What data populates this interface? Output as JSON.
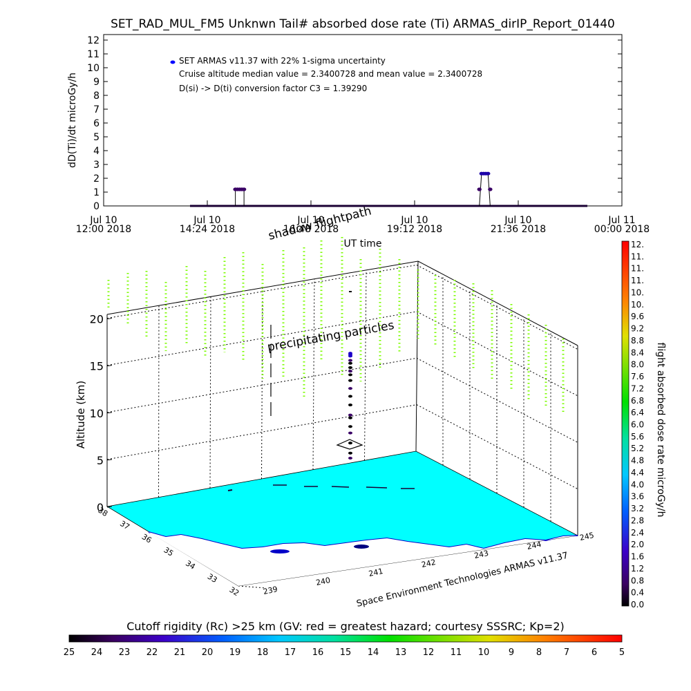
{
  "title": "SET_RAD_MUL_FM5 Unknwn Tail#  absorbed dose rate (Ti) ARMAS_dirIP_Report_01440",
  "top_panel": {
    "ylabel": "dD(Ti)/dt microGy/h",
    "xlabel": "UT time",
    "yticks": [
      "0",
      "1",
      "2",
      "3",
      "4",
      "5",
      "6",
      "7",
      "8",
      "9",
      "10",
      "11",
      "12"
    ],
    "xticks": [
      {
        "l1": "Jul 10",
        "l2": "12:00 2018"
      },
      {
        "l1": "Jul 10",
        "l2": "14:24 2018"
      },
      {
        "l1": "Jul 10",
        "l2": "16:48 2018"
      },
      {
        "l1": "Jul 10",
        "l2": "19:12 2018"
      },
      {
        "l1": "Jul 10",
        "l2": "21:36 2018"
      },
      {
        "l1": "Jul 11",
        "l2": "00:00 2018"
      }
    ],
    "legend": {
      "line1": "SET ARMAS v11.37 with 22% 1-sigma uncertainty",
      "line2": "Cruise altitude median value = 2.3400728 and mean value = 2.3400728",
      "line3": "D(si) -> D(ti) conversion factor C3 = 1.39290",
      "marker_color": "#0000ff"
    }
  },
  "chart_data": [
    {
      "type": "scatter",
      "title": "SET_RAD_MUL_FM5 Unknwn Tail#  absorbed dose rate (Ti) ARMAS_dirIP_Report_01440",
      "xlabel": "UT time",
      "ylabel": "dD(Ti)/dt microGy/h",
      "ylim": [
        0,
        12
      ],
      "xlim_hours": [
        12.0,
        24.0
      ],
      "series": [
        {
          "name": "SET ARMAS v11.37 with 22% 1-sigma uncertainty",
          "baseline": {
            "x_start_hours": 14.0,
            "x_end_hours": 24.0,
            "value": 0.0
          },
          "points_hours": [
            [
              15.05,
              1.2
            ],
            [
              15.1,
              1.2
            ],
            [
              15.15,
              1.2
            ],
            [
              15.2,
              1.2
            ],
            [
              15.25,
              1.2
            ],
            [
              20.7,
              1.2
            ],
            [
              20.75,
              2.34
            ],
            [
              20.8,
              2.34
            ],
            [
              20.85,
              2.34
            ],
            [
              20.9,
              2.34
            ],
            [
              20.95,
              1.2
            ]
          ]
        }
      ],
      "grid": false,
      "legend_position": "top-left"
    },
    {
      "type": "scatter",
      "title": "shadow flightpath",
      "ylabel": "Altitude (km)",
      "zticks": [
        "0",
        "5",
        "10",
        "15",
        "20"
      ],
      "lat_ticks": [
        "32",
        "33",
        "34",
        "35",
        "36",
        "37",
        "38"
      ],
      "lon_ticks": [
        "239",
        "240",
        "241",
        "242",
        "243",
        "244",
        "245"
      ],
      "annotations": [
        "shadow flightpath",
        "precipitating particles",
        "Space Environment Technologies ARMAS v11.37"
      ],
      "flight_altitude_profile_km": [
        0.0,
        0.7,
        2.1,
        3.5,
        4.4,
        5.6,
        6.0,
        7.4,
        8.6,
        9.7,
        10.8,
        11.6,
        12.1,
        12.6,
        13.2,
        13.6,
        14.2,
        14.4,
        14.6
      ]
    }
  ],
  "three_d": {
    "shadow_label": "shadow flightpath",
    "precip_label": "precipitating particles",
    "z_label": "Altitude (km)",
    "zticks": [
      "0",
      "5",
      "10",
      "15",
      "20"
    ],
    "lat_ticks": [
      "32",
      "33",
      "34",
      "35",
      "36",
      "37",
      "38"
    ],
    "lon_ticks": [
      "239",
      "240",
      "241",
      "242",
      "243",
      "244",
      "245"
    ],
    "credit": "Space Environment Technologies ARMAS v11.37",
    "surface_color": "#00ffff",
    "coast_color": "#0000c8"
  },
  "right_colorbar": {
    "label": "flight absorbed dose rate microGy/h",
    "ticks": [
      "0.0",
      "0.4",
      "0.8",
      "1.2",
      "1.6",
      "2.0",
      "2.4",
      "2.8",
      "3.2",
      "3.6",
      "4.0",
      "4.4",
      "4.8",
      "5.2",
      "5.6",
      "6.0",
      "6.4",
      "6.8",
      "7.2",
      "7.6",
      "8.0",
      "8.4",
      "8.8",
      "9.2",
      "9.6",
      "10.",
      "10.",
      "11.",
      "11.",
      "11.",
      "12."
    ]
  },
  "bottom_colorbar": {
    "label": "Cutoff rigidity (Rc) >25 km (GV: red = greatest hazard; courtesy SSSRC; Kp=2)",
    "ticks": [
      "25",
      "24",
      "23",
      "22",
      "21",
      "20",
      "19",
      "18",
      "17",
      "16",
      "15",
      "14",
      "13",
      "12",
      "11",
      "10",
      "9",
      "8",
      "7",
      "6",
      "5"
    ]
  },
  "colors": {
    "precip_dash": "#7cfc00",
    "flight_marker": "#000000",
    "baseline": "#1a0033"
  }
}
